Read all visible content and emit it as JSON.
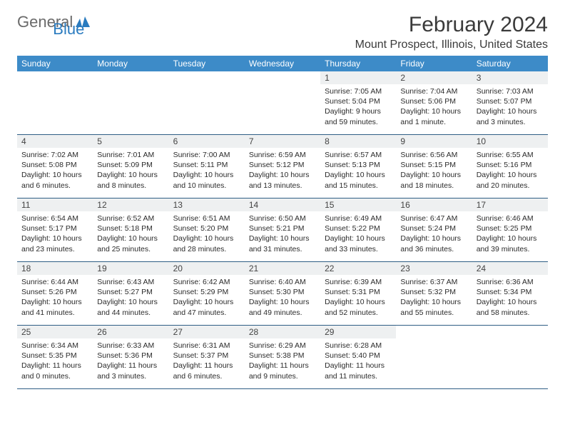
{
  "logo": {
    "text1": "General",
    "text2": "Blue"
  },
  "title": "February 2024",
  "location": "Mount Prospect, Illinois, United States",
  "colors": {
    "header_bg": "#3d8bc8",
    "header_text": "#ffffff",
    "daynum_bg": "#eef0f1",
    "divider": "#2f5e85",
    "body_bg": "#ffffff",
    "logo_gray": "#6a6a6a",
    "logo_blue": "#2a7bbf"
  },
  "day_names": [
    "Sunday",
    "Monday",
    "Tuesday",
    "Wednesday",
    "Thursday",
    "Friday",
    "Saturday"
  ],
  "weeks": [
    [
      null,
      null,
      null,
      null,
      {
        "n": "1",
        "sr": "Sunrise: 7:05 AM",
        "ss": "Sunset: 5:04 PM",
        "dl1": "Daylight: 9 hours",
        "dl2": "and 59 minutes."
      },
      {
        "n": "2",
        "sr": "Sunrise: 7:04 AM",
        "ss": "Sunset: 5:06 PM",
        "dl1": "Daylight: 10 hours",
        "dl2": "and 1 minute."
      },
      {
        "n": "3",
        "sr": "Sunrise: 7:03 AM",
        "ss": "Sunset: 5:07 PM",
        "dl1": "Daylight: 10 hours",
        "dl2": "and 3 minutes."
      }
    ],
    [
      {
        "n": "4",
        "sr": "Sunrise: 7:02 AM",
        "ss": "Sunset: 5:08 PM",
        "dl1": "Daylight: 10 hours",
        "dl2": "and 6 minutes."
      },
      {
        "n": "5",
        "sr": "Sunrise: 7:01 AM",
        "ss": "Sunset: 5:09 PM",
        "dl1": "Daylight: 10 hours",
        "dl2": "and 8 minutes."
      },
      {
        "n": "6",
        "sr": "Sunrise: 7:00 AM",
        "ss": "Sunset: 5:11 PM",
        "dl1": "Daylight: 10 hours",
        "dl2": "and 10 minutes."
      },
      {
        "n": "7",
        "sr": "Sunrise: 6:59 AM",
        "ss": "Sunset: 5:12 PM",
        "dl1": "Daylight: 10 hours",
        "dl2": "and 13 minutes."
      },
      {
        "n": "8",
        "sr": "Sunrise: 6:57 AM",
        "ss": "Sunset: 5:13 PM",
        "dl1": "Daylight: 10 hours",
        "dl2": "and 15 minutes."
      },
      {
        "n": "9",
        "sr": "Sunrise: 6:56 AM",
        "ss": "Sunset: 5:15 PM",
        "dl1": "Daylight: 10 hours",
        "dl2": "and 18 minutes."
      },
      {
        "n": "10",
        "sr": "Sunrise: 6:55 AM",
        "ss": "Sunset: 5:16 PM",
        "dl1": "Daylight: 10 hours",
        "dl2": "and 20 minutes."
      }
    ],
    [
      {
        "n": "11",
        "sr": "Sunrise: 6:54 AM",
        "ss": "Sunset: 5:17 PM",
        "dl1": "Daylight: 10 hours",
        "dl2": "and 23 minutes."
      },
      {
        "n": "12",
        "sr": "Sunrise: 6:52 AM",
        "ss": "Sunset: 5:18 PM",
        "dl1": "Daylight: 10 hours",
        "dl2": "and 25 minutes."
      },
      {
        "n": "13",
        "sr": "Sunrise: 6:51 AM",
        "ss": "Sunset: 5:20 PM",
        "dl1": "Daylight: 10 hours",
        "dl2": "and 28 minutes."
      },
      {
        "n": "14",
        "sr": "Sunrise: 6:50 AM",
        "ss": "Sunset: 5:21 PM",
        "dl1": "Daylight: 10 hours",
        "dl2": "and 31 minutes."
      },
      {
        "n": "15",
        "sr": "Sunrise: 6:49 AM",
        "ss": "Sunset: 5:22 PM",
        "dl1": "Daylight: 10 hours",
        "dl2": "and 33 minutes."
      },
      {
        "n": "16",
        "sr": "Sunrise: 6:47 AM",
        "ss": "Sunset: 5:24 PM",
        "dl1": "Daylight: 10 hours",
        "dl2": "and 36 minutes."
      },
      {
        "n": "17",
        "sr": "Sunrise: 6:46 AM",
        "ss": "Sunset: 5:25 PM",
        "dl1": "Daylight: 10 hours",
        "dl2": "and 39 minutes."
      }
    ],
    [
      {
        "n": "18",
        "sr": "Sunrise: 6:44 AM",
        "ss": "Sunset: 5:26 PM",
        "dl1": "Daylight: 10 hours",
        "dl2": "and 41 minutes."
      },
      {
        "n": "19",
        "sr": "Sunrise: 6:43 AM",
        "ss": "Sunset: 5:27 PM",
        "dl1": "Daylight: 10 hours",
        "dl2": "and 44 minutes."
      },
      {
        "n": "20",
        "sr": "Sunrise: 6:42 AM",
        "ss": "Sunset: 5:29 PM",
        "dl1": "Daylight: 10 hours",
        "dl2": "and 47 minutes."
      },
      {
        "n": "21",
        "sr": "Sunrise: 6:40 AM",
        "ss": "Sunset: 5:30 PM",
        "dl1": "Daylight: 10 hours",
        "dl2": "and 49 minutes."
      },
      {
        "n": "22",
        "sr": "Sunrise: 6:39 AM",
        "ss": "Sunset: 5:31 PM",
        "dl1": "Daylight: 10 hours",
        "dl2": "and 52 minutes."
      },
      {
        "n": "23",
        "sr": "Sunrise: 6:37 AM",
        "ss": "Sunset: 5:32 PM",
        "dl1": "Daylight: 10 hours",
        "dl2": "and 55 minutes."
      },
      {
        "n": "24",
        "sr": "Sunrise: 6:36 AM",
        "ss": "Sunset: 5:34 PM",
        "dl1": "Daylight: 10 hours",
        "dl2": "and 58 minutes."
      }
    ],
    [
      {
        "n": "25",
        "sr": "Sunrise: 6:34 AM",
        "ss": "Sunset: 5:35 PM",
        "dl1": "Daylight: 11 hours",
        "dl2": "and 0 minutes."
      },
      {
        "n": "26",
        "sr": "Sunrise: 6:33 AM",
        "ss": "Sunset: 5:36 PM",
        "dl1": "Daylight: 11 hours",
        "dl2": "and 3 minutes."
      },
      {
        "n": "27",
        "sr": "Sunrise: 6:31 AM",
        "ss": "Sunset: 5:37 PM",
        "dl1": "Daylight: 11 hours",
        "dl2": "and 6 minutes."
      },
      {
        "n": "28",
        "sr": "Sunrise: 6:29 AM",
        "ss": "Sunset: 5:38 PM",
        "dl1": "Daylight: 11 hours",
        "dl2": "and 9 minutes."
      },
      {
        "n": "29",
        "sr": "Sunrise: 6:28 AM",
        "ss": "Sunset: 5:40 PM",
        "dl1": "Daylight: 11 hours",
        "dl2": "and 11 minutes."
      },
      null,
      null
    ]
  ]
}
